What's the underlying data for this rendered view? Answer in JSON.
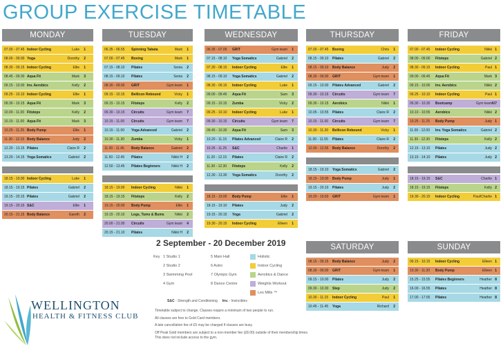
{
  "title": "GROUP EXERCISE TIMETABLE",
  "colors": {
    "yellow": "#f3cd38",
    "blue": "#a6d9e5",
    "orange": "#e08f5f",
    "green": "#bad58b",
    "purple": "#bfaed8",
    "header": "#8a8b8d",
    "title": "#41a7cb"
  },
  "days": [
    {
      "name": "MONDAY",
      "rows": [
        [
          "07.00 - 07.45",
          "Indoor Cycling",
          "Luke",
          "1",
          "yellow"
        ],
        [
          "08.00 - 09.00",
          "Yoga",
          "Dorothy",
          "2",
          "yellow"
        ],
        [
          "08.30 - 09.15",
          "Indoor Cycling",
          "Ellie",
          "1",
          "yellow"
        ],
        [
          "08.45 - 09.30",
          "Aqua Fit",
          "Mark",
          "3",
          "green"
        ],
        [
          "09.15 - 10.00",
          "Inv. Aerobics",
          "Kelly",
          "2",
          "green"
        ],
        [
          "09.25 - 10.10",
          "Indoor Cycling",
          "Ellie",
          "1",
          "yellow"
        ],
        [
          "09.30 - 10.15",
          "Aqua Fit",
          "Mark",
          "3",
          "green"
        ],
        [
          "10.00 - 11.00",
          "Fitsteps",
          "Kelly",
          "2",
          "green"
        ],
        [
          "10.15 - 11.00",
          "Aqua Fit",
          "Mark",
          "3",
          "green"
        ],
        [
          "10.25 - 11.25",
          "Body Pump",
          "Ellie",
          "1",
          "orange"
        ],
        [
          "11.30 - 12.15",
          "Body Balance",
          "Judy",
          "2",
          "orange"
        ],
        [
          "12.20 - 13.15",
          "Pilates",
          "Claire R",
          "2",
          "blue"
        ],
        [
          "13.20 - 14.15",
          "Yoga Somatics",
          "Gabriel",
          "2",
          "blue"
        ]
      ],
      "evening": [
        [
          "18.15 - 19.00",
          "Indoor Cycling",
          "Luke",
          "1",
          "yellow"
        ],
        [
          "18.15 - 19.15",
          "Pilates",
          "Gabriel",
          "2",
          "blue"
        ],
        [
          "19.15 - 20.15",
          "Pilates",
          "Gabriel",
          "2",
          "blue"
        ],
        [
          "19.15 - 20.15",
          "S&C",
          "Ellie",
          "1",
          "purple"
        ],
        [
          "20.15 - 21.15",
          "Body Balance",
          "Gareth",
          "2",
          "orange"
        ]
      ]
    },
    {
      "name": "TUESDAY",
      "rows": [
        [
          "06.35 - 06.55",
          "Spinning Tabata",
          "Mark",
          "1",
          "yellow"
        ],
        [
          "07.00 - 07.45",
          "Boxing",
          "Mark",
          "1",
          "yellow"
        ],
        [
          "07.15 - 08.10",
          "Pilates",
          "Sonia",
          "2",
          "blue"
        ],
        [
          "08.15 - 09.10",
          "Pilates",
          "Sonia",
          "2",
          "blue"
        ],
        [
          "08.30 - 09.00",
          "GRIT",
          "Gym team",
          "1",
          "orange"
        ],
        [
          "09.15 - 10.15",
          "Bellicon Rebound",
          "Vicky",
          "1",
          "yellow"
        ],
        [
          "09.15 - 10.15",
          "Fitsteps",
          "Kelly",
          "2",
          "green"
        ],
        [
          "09.30 - 10.15",
          "Circuits",
          "Gym team",
          "7",
          "purple"
        ],
        [
          "10.15 - 11.00",
          "Circuits",
          "Gym team",
          "7",
          "purple"
        ],
        [
          "10.15 - 11.00",
          "Yoga Advanced",
          "Gabriel",
          "2",
          "blue"
        ],
        [
          "10.30 - 11.30",
          "Zumba",
          "Vicky",
          "1",
          "green"
        ],
        [
          "11.00 - 11.45",
          "Body Balance",
          "Gabriel",
          "2",
          "orange"
        ],
        [
          "11.50 - 12.45",
          "Pilates",
          "Nikki H",
          "2",
          "blue"
        ],
        [
          "12.50 - 13.45",
          "Pilates Beginners",
          "Nikki H",
          "2",
          "blue"
        ]
      ],
      "evening": [
        [
          "18.15 - 19.00",
          "Indoor Cycling",
          "Nikki",
          "1",
          "yellow"
        ],
        [
          "18.15 - 19.15",
          "Fitsteps",
          "Kelly",
          "2",
          "green"
        ],
        [
          "19.15 - 20.00",
          "Body Pump",
          "Ellie",
          "1",
          "orange"
        ],
        [
          "19.15 - 20.10",
          "Legs, Tums & Bums",
          "Nikki",
          "2",
          "green"
        ],
        [
          "20.00 - 21.00",
          "Circuits",
          "Gym team",
          "4",
          "purple"
        ],
        [
          "20.15 - 21.10",
          "Pilates",
          "Nikki H",
          "2",
          "blue"
        ]
      ]
    },
    {
      "name": "WEDNESDAY",
      "rows": [
        [
          "06.35 - 07.05",
          "GRIT",
          "Gym team",
          "1",
          "orange"
        ],
        [
          "07.15 - 08.10",
          "Yoga Somatics",
          "Gabriel",
          "2",
          "blue"
        ],
        [
          "07.30 - 08.15",
          "Indoor Cycling",
          "Ellie",
          "1",
          "yellow"
        ],
        [
          "08.15 - 09.10",
          "Yoga Somatics",
          "Gabriel",
          "2",
          "blue"
        ],
        [
          "08.30 - 09.15",
          "Indoor Cycling",
          "Luke",
          "1",
          "yellow"
        ],
        [
          "09.00 - 09.45",
          "Aqua Fit",
          "Sam",
          "3",
          "green"
        ],
        [
          "09.15 - 10.15",
          "Zumba",
          "Vicky",
          "2",
          "green"
        ],
        [
          "09.25 - 10.10",
          "Indoor Cycling",
          "Luke",
          "1",
          "yellow"
        ],
        [
          "09.30 - 10.15",
          "Circuits",
          "Gym team",
          "7",
          "purple"
        ],
        [
          "09.45 - 10.30",
          "Aqua Fit",
          "Sam",
          "3",
          "green"
        ],
        [
          "10.20 - 11.15",
          "Pilates Advanced",
          "Claire R",
          "2",
          "blue"
        ],
        [
          "10.25 - 11.25",
          "S&C",
          "Charlie",
          "1",
          "purple"
        ],
        [
          "11.20 - 12.15",
          "Pilates",
          "Claire R",
          "2",
          "blue"
        ],
        [
          "11.30 - 12.30",
          "Fitsteps",
          "Kelly",
          "2",
          "green"
        ],
        [
          "12.30 - 13.30",
          "Yoga Somatics",
          "Dorothy",
          "2",
          "blue"
        ]
      ],
      "evening": [
        [
          "18.15 - 19.00",
          "Body Pump",
          "Ellie",
          "1",
          "orange"
        ],
        [
          "18.15 - 19.10",
          "Pilates",
          "Judy",
          "2",
          "blue"
        ],
        [
          "19.15 - 20.15",
          "Yoga",
          "Gabriel",
          "2",
          "blue"
        ],
        [
          "19.30 - 20.15",
          "Indoor Cycling",
          "Elleen",
          "1",
          "yellow"
        ]
      ]
    },
    {
      "name": "THURSDAY",
      "rows": [
        [
          "07.00 - 07.45",
          "Boxing",
          "Chris",
          "1",
          "yellow"
        ],
        [
          "08.15 - 09.10",
          "Pilates",
          "Gabriel",
          "2",
          "blue"
        ],
        [
          "08.15 - 09.10",
          "Body Balance",
          "Judy",
          "2",
          "orange"
        ],
        [
          "08.30 - 09.00",
          "GRIT",
          "Gym team",
          "1",
          "orange"
        ],
        [
          "09.15 - 10.00",
          "Pilates Advanced",
          "Gabriel",
          "2",
          "blue"
        ],
        [
          "09.30 - 10.15",
          "Circuits",
          "Gym team",
          "7",
          "purple"
        ],
        [
          "09.30 - 10.15",
          "Aerobics",
          "Nikki",
          "1",
          "green"
        ],
        [
          "10.05 - 10.55",
          "Pilates",
          "Claire R",
          "2",
          "blue"
        ],
        [
          "10.15 - 11.00",
          "Circuits",
          "Gym team",
          "7",
          "purple"
        ],
        [
          "10.30 - 11.30",
          "Bellicon Rebound",
          "Vicky",
          "1",
          "yellow"
        ],
        [
          "11.00 - 11.55",
          "Pilates",
          "Claire R",
          "2",
          "blue"
        ],
        [
          "12.00 - 12.55",
          "Body Balance",
          "Dorothy",
          "2",
          "orange"
        ]
      ],
      "evening": [
        [
          "18.15 - 19.10",
          "Yoga Somatics",
          "Gabriel",
          "2",
          "blue"
        ],
        [
          "18.15 - 19.00",
          "Body Pump",
          "Judy",
          "1",
          "orange"
        ],
        [
          "19.15 - 20.10",
          "Pilates",
          "Judy",
          "2",
          "blue"
        ],
        [
          "19.20 - 19.50",
          "GRIT",
          "Gym team",
          "1",
          "orange"
        ]
      ]
    },
    {
      "name": "FRIDAY",
      "rows": [
        [
          "07.00 - 07.45",
          "Indoor Cycling",
          "Nikki",
          "1",
          "yellow"
        ],
        [
          "08.00 - 09.00",
          "Fitsteps",
          "Gabriel",
          "2",
          "green"
        ],
        [
          "08.30 - 09.15",
          "Indoor Cycling",
          "Paul",
          "1",
          "yellow"
        ],
        [
          "09.00 - 09.45",
          "Aqua Fit",
          "Mark",
          "3",
          "green"
        ],
        [
          "09.15 - 10.00",
          "Inv. Aerobics",
          "Nikki",
          "2",
          "green"
        ],
        [
          "09.25 - 10.10",
          "Indoor Cycling",
          "Paul",
          "1",
          "yellow"
        ],
        [
          "09.30 - 10.30",
          "Bootcamp",
          "Gym team",
          "6/7",
          "purple"
        ],
        [
          "10.10 - 10.55",
          "Aerobics",
          "Nikki",
          "2",
          "green"
        ],
        [
          "10.25 - 11.25",
          "Body Pump",
          "Judy",
          "1",
          "orange"
        ],
        [
          "11.00 - 12.00",
          "Inv. Yoga Somatics",
          "Gabriel",
          "2",
          "blue"
        ],
        [
          "11.30 - 12.30",
          "Fitsteps",
          "Kelly",
          "2",
          "green"
        ],
        [
          "12.15 - 13.10",
          "Pilates",
          "Judy",
          "2",
          "blue"
        ],
        [
          "13.15 - 14.10",
          "Pilates",
          "Judy",
          "2",
          "blue"
        ]
      ],
      "evening": [
        [
          "18.15 - 19.15",
          "S&C",
          "Charlie",
          "1",
          "purple"
        ],
        [
          "18.15 - 19.15",
          "Fitsteps",
          "Kelly",
          "2",
          "green"
        ],
        [
          "19.30 - 20.15",
          "Indoor Cycling",
          "Paul/Charlie",
          "1",
          "yellow"
        ]
      ]
    },
    {
      "name": "SATURDAY",
      "rows": [
        [
          "08.15 - 09.15",
          "Body Balance",
          "Judy",
          "2",
          "orange"
        ],
        [
          "08.30 - 09.00",
          "GRIT",
          "Gym team",
          "1",
          "orange"
        ],
        [
          "09.15 - 10.00",
          "Pilates",
          "Judy",
          "2",
          "blue"
        ],
        [
          "09.30 - 10.30",
          "Step",
          "Judy",
          "2",
          "green"
        ],
        [
          "10.30 - 11.15",
          "Indoor Cycling",
          "Paul",
          "1",
          "yellow"
        ],
        [
          "10.45 - 11.45",
          "Yoga",
          "Richard",
          "2",
          "blue"
        ]
      ],
      "evening": []
    },
    {
      "name": "SUNDAY",
      "rows": [
        [
          "09.15 - 10.15",
          "Indoor Cycling",
          "Elleen",
          "1",
          "yellow"
        ],
        [
          "10.30 - 11.30",
          "Body Pump",
          "Elleen",
          "1",
          "orange"
        ],
        [
          "15.25 - 15.55",
          "Pilates Beginners",
          "Heather",
          "8",
          "blue"
        ],
        [
          "16.00 - 16.55",
          "Pilates",
          "Heather",
          "8",
          "blue"
        ],
        [
          "17.00 - 17.55",
          "Pilates",
          "Heather",
          "8",
          "blue"
        ]
      ],
      "evening": []
    }
  ],
  "dates": "2 September - 20 December 2019",
  "key_label": "Key",
  "locations": [
    "1  Studio 1",
    "2  Studio 2",
    "3  Swimming Pool",
    "4  Gym",
    "5  Main Hall",
    "6  Astro",
    "7  Olympic Gym",
    "8  Dance Centre"
  ],
  "legend": [
    {
      "label": "Holistic",
      "color": "blue"
    },
    {
      "label": "Indoor Cycling",
      "color": "yellow"
    },
    {
      "label": "Aerobics & Dance",
      "color": "green"
    },
    {
      "label": "Weights Workout",
      "color": "purple"
    },
    {
      "label": "Les Mills ™",
      "color": "orange"
    }
  ],
  "abbr_sc": "S&C",
  "abbr_sc_text": "- Strength and Conditioning",
  "abbr_inv": "Inv.",
  "abbr_inv_text": "- Invincibles",
  "notes": [
    "Timetable subject to change. Classes require a minimum of two people to run.",
    "All classes are free to Gold Card members.",
    "A late cancellation fee of £5 may be charged if classes are busy.",
    "Off Peak Gold members are subject to a non-member fee (£8.00) outside of their membership times. This does not include access to the gym."
  ],
  "logo_name": "WELLINGTON",
  "logo_sub": "HEALTH & FITNESS CLUB"
}
